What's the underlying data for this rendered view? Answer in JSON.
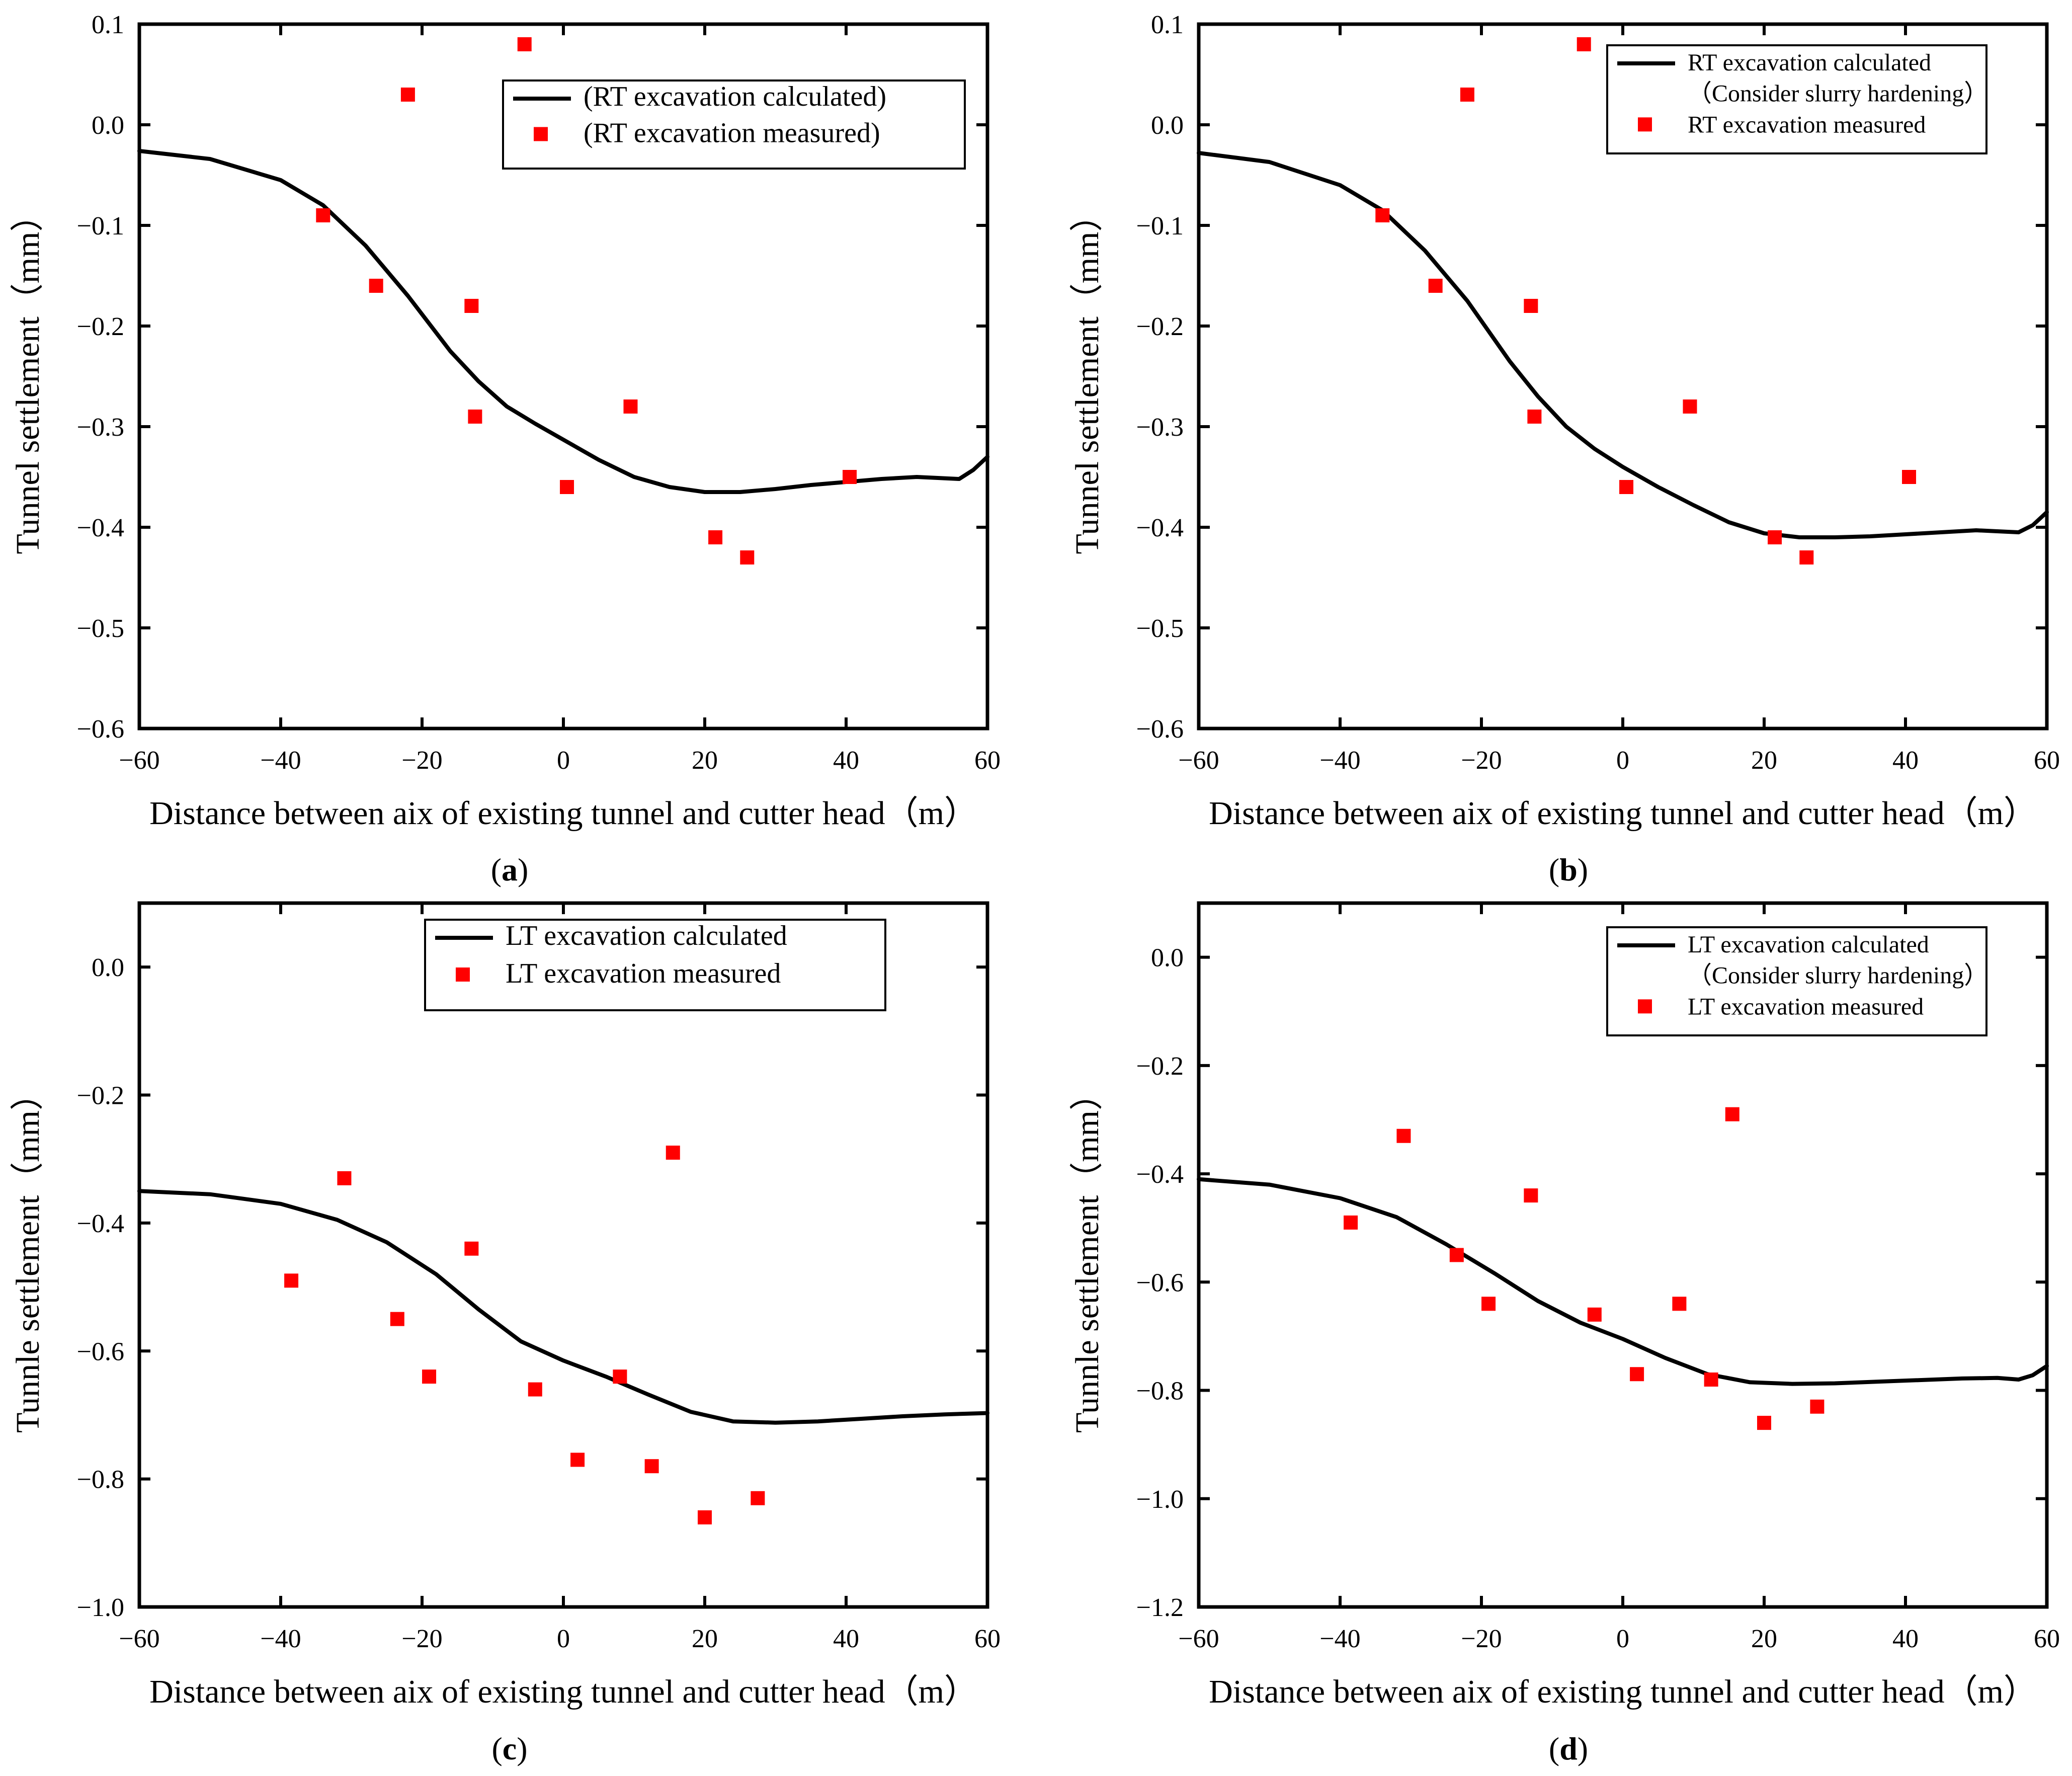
{
  "colors": {
    "line": "#000000",
    "marker": "#ff0000",
    "axis": "#000000",
    "background": "#ffffff"
  },
  "chart_data": [
    {
      "type": "line",
      "panel_label": "a",
      "title": "",
      "xlabel": "Distance between aix of existing tunnel and cutter head（m）",
      "ylabel": "Tunnel settlement（mm）",
      "xlim": [
        -60,
        60
      ],
      "ylim": [
        -0.6,
        0.1
      ],
      "xticks": [
        -60,
        -40,
        -20,
        0,
        20,
        40,
        60
      ],
      "yticks": [
        -0.6,
        -0.5,
        -0.4,
        -0.3,
        -0.2,
        -0.1,
        0.0,
        0.1
      ],
      "ytick_labels": [
        "−0.6",
        "−0.5",
        "−0.4",
        "−0.3",
        "−0.2",
        "−0.1",
        "0.0",
        "0.1"
      ],
      "xtick_labels": [
        "−60",
        "−40",
        "−20",
        "0",
        "20",
        "40",
        "60"
      ],
      "legend_position": "top-right",
      "series": [
        {
          "name": "(RT excavation calculated)",
          "legend_lines": [
            "(RT excavation calculated)"
          ],
          "kind": "line",
          "x": [
            -60,
            -50,
            -40,
            -34,
            -28,
            -22,
            -16,
            -12,
            -8,
            -4,
            0,
            5,
            10,
            15,
            20,
            25,
            30,
            35,
            40,
            45,
            50,
            53,
            56,
            58,
            60
          ],
          "y": [
            -0.026,
            -0.034,
            -0.055,
            -0.08,
            -0.12,
            -0.17,
            -0.225,
            -0.255,
            -0.28,
            -0.297,
            -0.313,
            -0.333,
            -0.35,
            -0.36,
            -0.365,
            -0.365,
            -0.362,
            -0.358,
            -0.355,
            -0.352,
            -0.35,
            -0.351,
            -0.352,
            -0.343,
            -0.33
          ]
        },
        {
          "name": "(RT excavation measured)",
          "legend_lines": [
            "(RT excavation measured)"
          ],
          "kind": "scatter",
          "x": [
            -34,
            -26.5,
            -22,
            -13,
            -12.5,
            -5.5,
            0.5,
            9.5,
            21.5,
            26,
            40.5
          ],
          "y": [
            -0.09,
            -0.16,
            0.03,
            -0.18,
            -0.29,
            0.08,
            -0.36,
            -0.28,
            -0.41,
            -0.43,
            -0.35
          ]
        }
      ]
    },
    {
      "type": "line",
      "panel_label": "b",
      "title": "",
      "xlabel": "Distance between aix of existing tunnel and cutter head（m）",
      "ylabel": "Tunnel settlement（mm）",
      "xlim": [
        -60,
        60
      ],
      "ylim": [
        -0.6,
        0.1
      ],
      "xticks": [
        -60,
        -40,
        -20,
        0,
        20,
        40,
        60
      ],
      "yticks": [
        -0.6,
        -0.5,
        -0.4,
        -0.3,
        -0.2,
        -0.1,
        0.0,
        0.1
      ],
      "ytick_labels": [
        "−0.6",
        "−0.5",
        "−0.4",
        "−0.3",
        "−0.2",
        "−0.1",
        "0.0",
        "0.1"
      ],
      "xtick_labels": [
        "−60",
        "−40",
        "−20",
        "0",
        "20",
        "40",
        "60"
      ],
      "legend_position": "top-right",
      "series": [
        {
          "name": "RT excavation calculated (Consider slurry hardening)",
          "legend_lines": [
            "RT excavation calculated",
            "（Consider slurry hardening）"
          ],
          "kind": "line",
          "x": [
            -60,
            -50,
            -40,
            -34,
            -28,
            -22,
            -16,
            -12,
            -8,
            -4,
            0,
            5,
            10,
            15,
            20,
            25,
            30,
            35,
            40,
            45,
            50,
            53,
            56,
            58,
            60
          ],
          "y": [
            -0.028,
            -0.037,
            -0.06,
            -0.085,
            -0.125,
            -0.175,
            -0.235,
            -0.27,
            -0.3,
            -0.322,
            -0.34,
            -0.36,
            -0.378,
            -0.395,
            -0.406,
            -0.41,
            -0.41,
            -0.409,
            -0.407,
            -0.405,
            -0.403,
            -0.404,
            -0.405,
            -0.398,
            -0.385
          ]
        },
        {
          "name": "RT excavation measured",
          "legend_lines": [
            "RT excavation measured"
          ],
          "kind": "scatter",
          "x": [
            -34,
            -26.5,
            -22,
            -13,
            -12.5,
            -5.5,
            0.5,
            9.5,
            21.5,
            26,
            40.5
          ],
          "y": [
            -0.09,
            -0.16,
            0.03,
            -0.18,
            -0.29,
            0.08,
            -0.36,
            -0.28,
            -0.41,
            -0.43,
            -0.35
          ]
        }
      ]
    },
    {
      "type": "line",
      "panel_label": "c",
      "title": "",
      "xlabel": "Distance between aix of existing tunnel and cutter head（m）",
      "ylabel": "Tunnle settlement（mm）",
      "xlim": [
        -60,
        60
      ],
      "ylim": [
        -1.0,
        0.1
      ],
      "xticks": [
        -60,
        -40,
        -20,
        0,
        20,
        40,
        60
      ],
      "yticks": [
        -1.0,
        -0.8,
        -0.6,
        -0.4,
        -0.2,
        0.0
      ],
      "ytick_labels": [
        "−1.0",
        "−0.8",
        "−0.6",
        "−0.4",
        "−0.2",
        "0.0"
      ],
      "xtick_labels": [
        "−60",
        "−40",
        "−20",
        "0",
        "20",
        "40",
        "60"
      ],
      "legend_position": "top-right",
      "series": [
        {
          "name": "LT excavation calculated",
          "legend_lines": [
            "LT excavation calculated"
          ],
          "kind": "line",
          "x": [
            -60,
            -50,
            -40,
            -32,
            -25,
            -18,
            -12,
            -6,
            0,
            6,
            12,
            18,
            24,
            30,
            36,
            42,
            48,
            54,
            60
          ],
          "y": [
            -0.35,
            -0.355,
            -0.37,
            -0.395,
            -0.43,
            -0.48,
            -0.535,
            -0.585,
            -0.615,
            -0.64,
            -0.668,
            -0.695,
            -0.71,
            -0.712,
            -0.71,
            -0.706,
            -0.702,
            -0.699,
            -0.697
          ]
        },
        {
          "name": "LT excavation measured",
          "legend_lines": [
            "LT excavation measured"
          ],
          "kind": "scatter",
          "x": [
            -38.5,
            -31,
            -23.5,
            -19,
            -13,
            -4,
            2,
            8,
            12.5,
            15.5,
            20,
            27.5
          ],
          "y": [
            -0.49,
            -0.33,
            -0.55,
            -0.64,
            -0.44,
            -0.66,
            -0.77,
            -0.64,
            -0.78,
            -0.29,
            -0.86,
            -0.83
          ]
        }
      ]
    },
    {
      "type": "line",
      "panel_label": "d",
      "title": "",
      "xlabel": "Distance between aix of existing tunnel and cutter head（m）",
      "ylabel": "Tunnle settlement（mm）",
      "xlim": [
        -60,
        60
      ],
      "ylim": [
        -1.2,
        0.1
      ],
      "xticks": [
        -60,
        -40,
        -20,
        0,
        20,
        40,
        60
      ],
      "yticks": [
        -1.2,
        -1.0,
        -0.8,
        -0.6,
        -0.4,
        -0.2,
        0.0
      ],
      "ytick_labels": [
        "−1.2",
        "−1.0",
        "−0.8",
        "−0.6",
        "−0.4",
        "−0.2",
        "0.0"
      ],
      "xtick_labels": [
        "−60",
        "−40",
        "−20",
        "0",
        "20",
        "40",
        "60"
      ],
      "legend_position": "top-right",
      "series": [
        {
          "name": "LT excavation calculated (Consider slurry hardening)",
          "legend_lines": [
            "LT excavation calculated",
            "（Consider slurry hardening）"
          ],
          "kind": "line",
          "x": [
            -60,
            -50,
            -40,
            -32,
            -25,
            -18,
            -12,
            -6,
            0,
            6,
            12,
            18,
            24,
            30,
            36,
            42,
            48,
            53,
            56,
            58,
            60
          ],
          "y": [
            -0.41,
            -0.42,
            -0.445,
            -0.48,
            -0.53,
            -0.585,
            -0.635,
            -0.675,
            -0.705,
            -0.74,
            -0.77,
            -0.785,
            -0.788,
            -0.787,
            -0.784,
            -0.781,
            -0.778,
            -0.777,
            -0.78,
            -0.772,
            -0.755
          ]
        },
        {
          "name": "LT excavation measured",
          "legend_lines": [
            "LT excavation measured"
          ],
          "kind": "scatter",
          "x": [
            -38.5,
            -31,
            -23.5,
            -19,
            -13,
            -4,
            2,
            8,
            12.5,
            15.5,
            20,
            27.5
          ],
          "y": [
            -0.49,
            -0.33,
            -0.55,
            -0.64,
            -0.44,
            -0.66,
            -0.77,
            -0.64,
            -0.78,
            -0.29,
            -0.86,
            -0.83
          ]
        }
      ]
    }
  ]
}
